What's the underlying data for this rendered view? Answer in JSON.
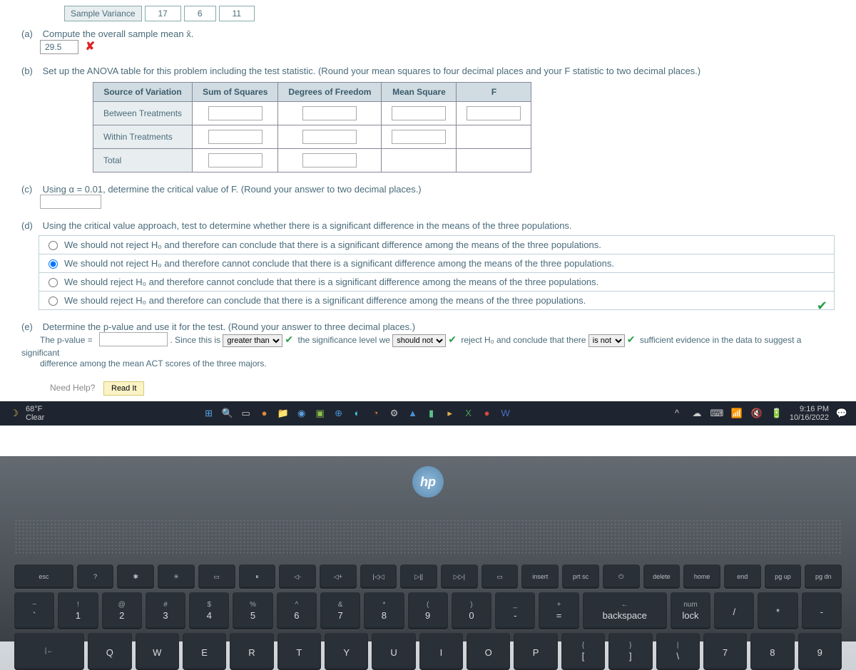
{
  "top": {
    "lbl": "Sample Variance",
    "v1": "17",
    "v2": "6",
    "v3": "11"
  },
  "a": {
    "label": "(a)",
    "text": "Compute the overall sample mean x̄.",
    "value": "29.5"
  },
  "b": {
    "label": "(b)",
    "text": "Set up the ANOVA table for this problem including the test statistic. (Round your mean squares to four decimal places and your F statistic to two decimal places.)",
    "hdr": {
      "c1": "Source of Variation",
      "c2": "Sum of Squares",
      "c3": "Degrees of Freedom",
      "c4": "Mean Square",
      "c5": "F"
    },
    "rows": {
      "r1": "Between Treatments",
      "r2": "Within Treatments",
      "r3": "Total"
    }
  },
  "c": {
    "label": "(c)",
    "text": "Using α = 0.01, determine the critical value of F. (Round your answer to two decimal places.)"
  },
  "d": {
    "label": "(d)",
    "text": "Using the critical value approach, test to determine whether there is a significant difference in the means of the three populations.",
    "o1": "We should not reject H₀ and therefore can conclude that there is a significant difference among the means of the three populations.",
    "o2": "We should not reject H₀ and therefore cannot conclude that there is a significant difference among the means of the three populations.",
    "o3": "We should reject H₀ and therefore cannot conclude that there is a significant difference among the means of the three populations.",
    "o4": "We should reject H₀ and therefore can conclude that there is a significant difference among the means of the three populations."
  },
  "e": {
    "label": "(e)",
    "text": "Determine the p-value and use it for the test. (Round your answer to three decimal places.)",
    "t1": "The p-value = ",
    "t2": ". Since this is ",
    "sel1": "greater than",
    "t3": " the significance level we ",
    "sel2": "should not",
    "t4": " reject H₀ and conclude that there ",
    "sel3": "is not",
    "t5": " sufficient evidence in the data to suggest a significant",
    "t6": "difference among the mean ACT scores of the three majors."
  },
  "help": {
    "label": "Need Help?",
    "btn": "Read It"
  },
  "taskbar": {
    "temp": "68°F",
    "cond": "Clear",
    "time": "9:16 PM",
    "date": "10/16/2022"
  },
  "hp": "hp",
  "fnrow": [
    "esc",
    "?",
    "✱",
    "✳",
    "▭",
    "⏸",
    "◁-",
    "◁+",
    "|◁◁",
    "▷||",
    "▷▷|",
    "▭",
    "insert",
    "prt sc",
    "⏻",
    "delete",
    "home",
    "end",
    "pg up",
    "pg dn"
  ],
  "numrow": [
    {
      "t": "~",
      "b": "`"
    },
    {
      "t": "!",
      "b": "1"
    },
    {
      "t": "@",
      "b": "2"
    },
    {
      "t": "#",
      "b": "3"
    },
    {
      "t": "$",
      "b": "4"
    },
    {
      "t": "%",
      "b": "5"
    },
    {
      "t": "^",
      "b": "6"
    },
    {
      "t": "&",
      "b": "7"
    },
    {
      "t": "*",
      "b": "8"
    },
    {
      "t": "(",
      "b": "9"
    },
    {
      "t": ")",
      "b": "0"
    },
    {
      "t": "_",
      "b": "-"
    },
    {
      "t": "+",
      "b": "="
    },
    {
      "t": "←",
      "b": "backspace"
    },
    {
      "t": "num",
      "b": "lock"
    },
    {
      "t": "",
      "b": "/"
    },
    {
      "t": "",
      "b": "*"
    },
    {
      "t": "",
      "b": "-"
    }
  ],
  "qrow": [
    {
      "t": "|←",
      "b": ""
    },
    {
      "t": "",
      "b": "Q"
    },
    {
      "t": "",
      "b": "W"
    },
    {
      "t": "",
      "b": "E"
    },
    {
      "t": "",
      "b": "R"
    },
    {
      "t": "",
      "b": "T"
    },
    {
      "t": "",
      "b": "Y"
    },
    {
      "t": "",
      "b": "U"
    },
    {
      "t": "",
      "b": "I"
    },
    {
      "t": "",
      "b": "O"
    },
    {
      "t": "",
      "b": "P"
    },
    {
      "t": "{",
      "b": "["
    },
    {
      "t": "}",
      "b": "]"
    },
    {
      "t": "|",
      "b": "\\"
    },
    {
      "t": "",
      "b": "7"
    },
    {
      "t": "",
      "b": "8"
    },
    {
      "t": "",
      "b": "9"
    }
  ]
}
